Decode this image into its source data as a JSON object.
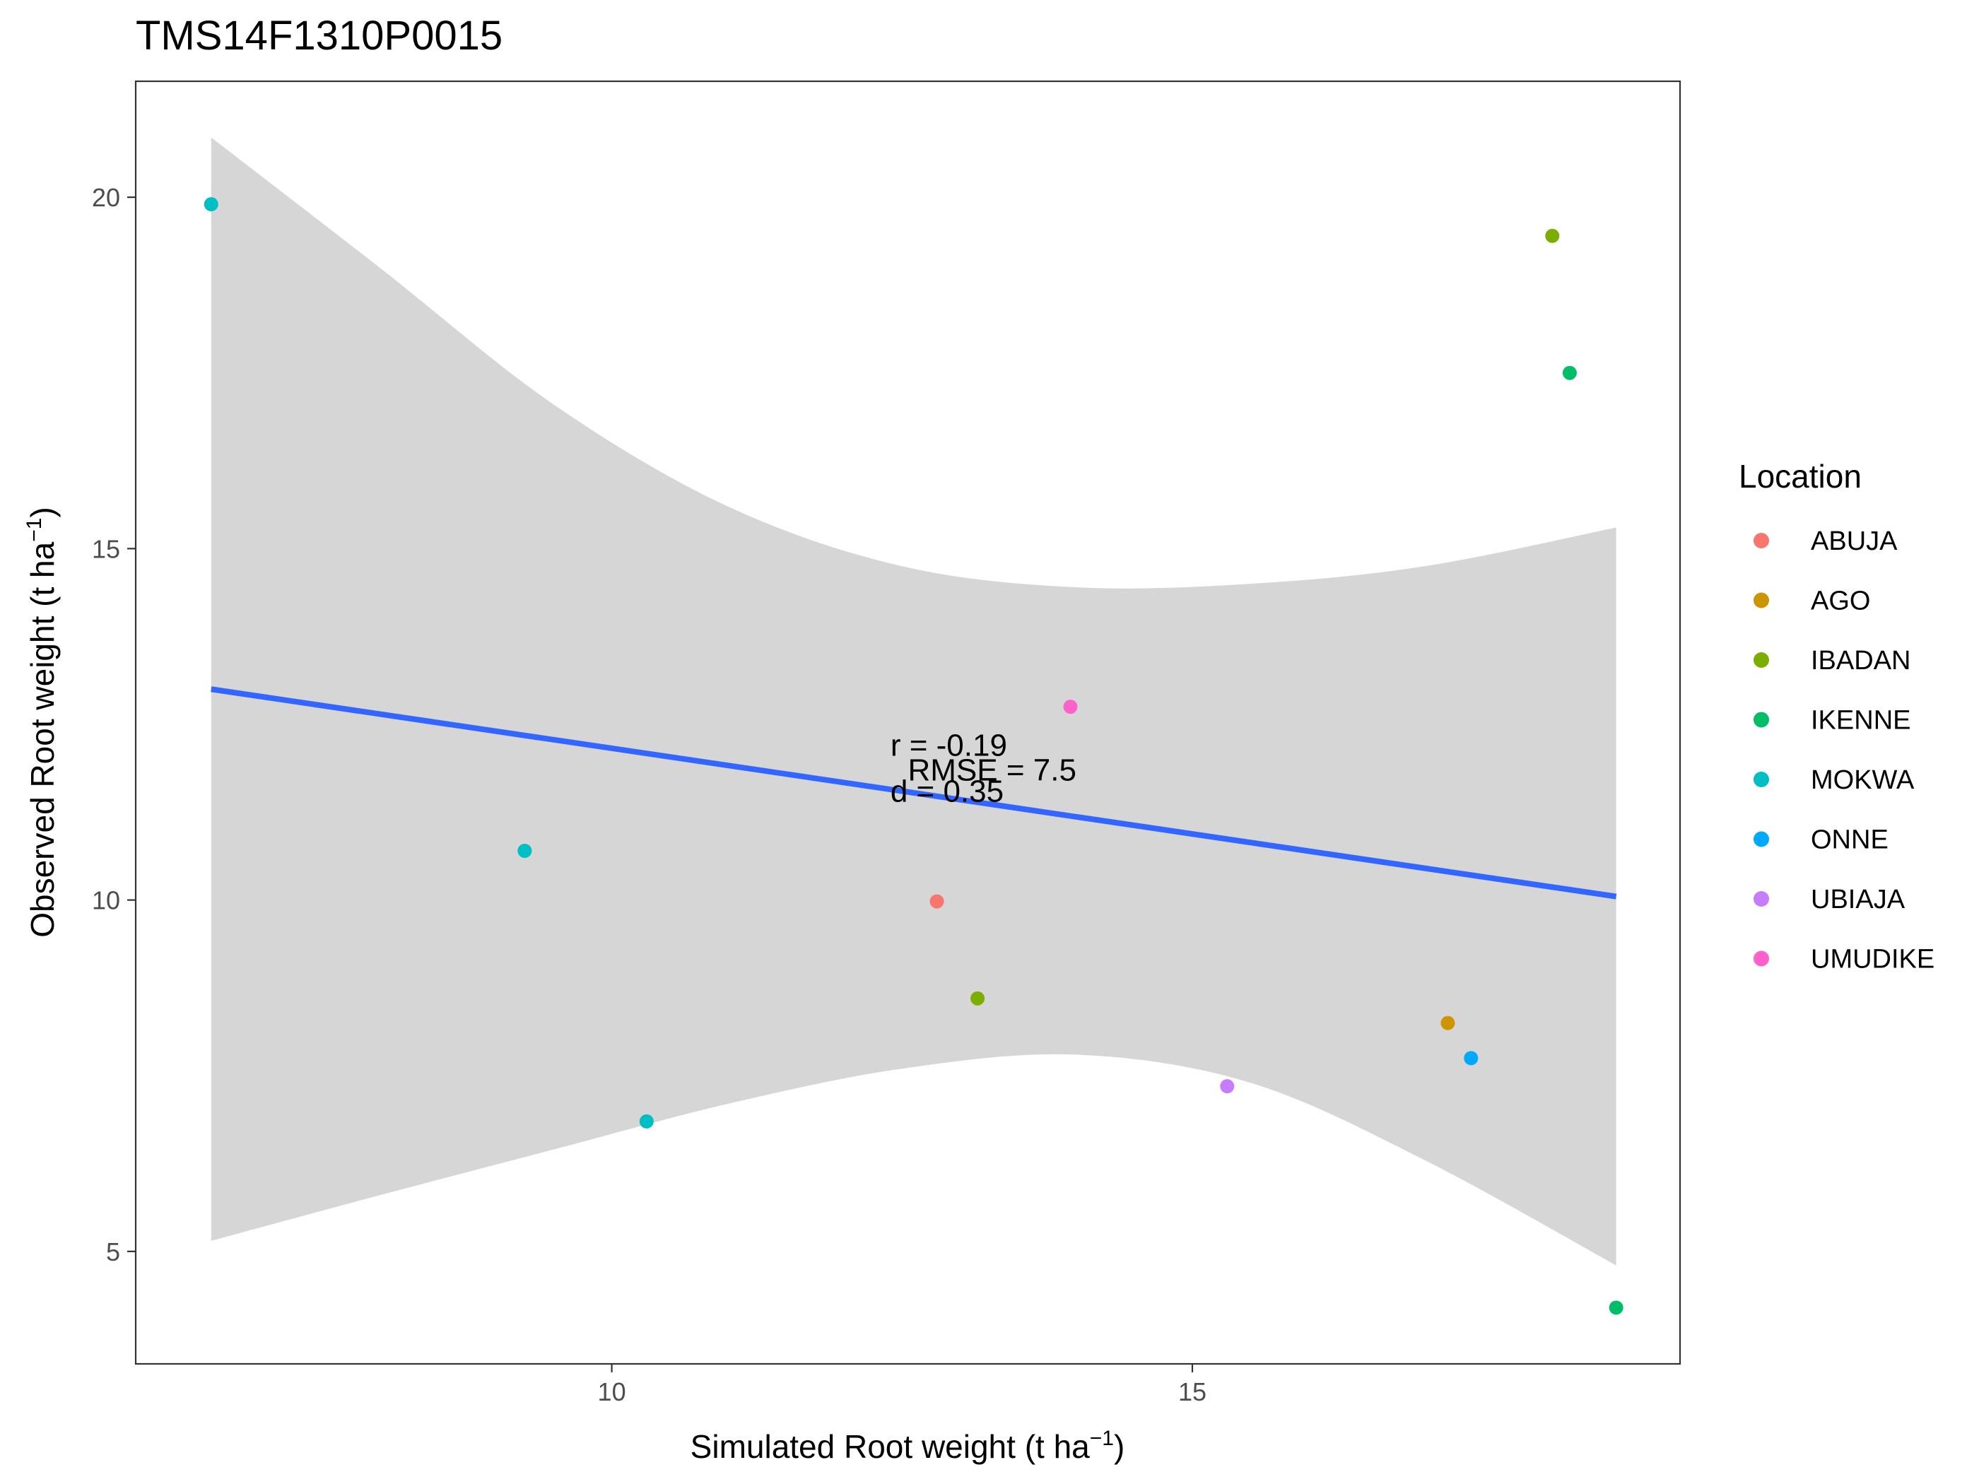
{
  "chart_data": {
    "type": "scatter",
    "title": "TMS14F1310P0015",
    "xlabel": "Simulated Root weight",
    "xlabel_unit": "t ha",
    "ylabel": "Observed Root weight",
    "ylabel_unit": "t ha",
    "unit_exponent": "−1",
    "xlim": [
      5.9,
      19.2
    ],
    "ylim": [
      3.4,
      21.65
    ],
    "x_ticks": [
      10,
      15
    ],
    "y_ticks": [
      5,
      10,
      15,
      20
    ],
    "grid": false,
    "legend_title": "Location",
    "legend_position": "right",
    "series": [
      {
        "name": "ABUJA",
        "color": "#F8766D",
        "points": [
          {
            "x": 12.8,
            "y": 9.98
          }
        ]
      },
      {
        "name": "AGO",
        "color": "#CD9600",
        "points": [
          {
            "x": 17.2,
            "y": 8.25
          }
        ]
      },
      {
        "name": "IBADAN",
        "color": "#7CAE00",
        "points": [
          {
            "x": 18.1,
            "y": 19.45
          },
          {
            "x": 13.15,
            "y": 8.6
          }
        ]
      },
      {
        "name": "IKENNE",
        "color": "#00BE67",
        "points": [
          {
            "x": 18.25,
            "y": 17.5
          },
          {
            "x": 18.65,
            "y": 4.2
          }
        ]
      },
      {
        "name": "MOKWA",
        "color": "#00BFC4",
        "points": [
          {
            "x": 6.55,
            "y": 19.9
          },
          {
            "x": 9.25,
            "y": 10.7
          },
          {
            "x": 10.3,
            "y": 6.85
          }
        ]
      },
      {
        "name": "ONNE",
        "color": "#00A9FF",
        "points": [
          {
            "x": 17.4,
            "y": 7.75
          }
        ]
      },
      {
        "name": "UBIAJA",
        "color": "#C77CFF",
        "points": [
          {
            "x": 15.3,
            "y": 7.35
          }
        ]
      },
      {
        "name": "UMUDIKE",
        "color": "#FF61CC",
        "points": [
          {
            "x": 13.95,
            "y": 12.75
          }
        ]
      }
    ],
    "regression": {
      "color": "#3366FF",
      "x": [
        6.55,
        18.65
      ],
      "y": [
        13.0,
        10.05
      ]
    },
    "confidence_band": {
      "color": "#D6D6D6",
      "x": [
        6.55,
        8.0,
        9.5,
        11.0,
        12.5,
        14.0,
        15.5,
        17.0,
        18.65
      ],
      "upper": [
        20.85,
        19.0,
        17.05,
        15.6,
        14.75,
        14.45,
        14.5,
        14.75,
        15.3
      ],
      "lower": [
        5.15,
        5.8,
        6.45,
        7.1,
        7.6,
        7.8,
        7.4,
        6.3,
        4.8
      ]
    },
    "annotations": [
      "r = -0.19",
      "RMSE = 7.5",
      "d = 0.35"
    ]
  }
}
